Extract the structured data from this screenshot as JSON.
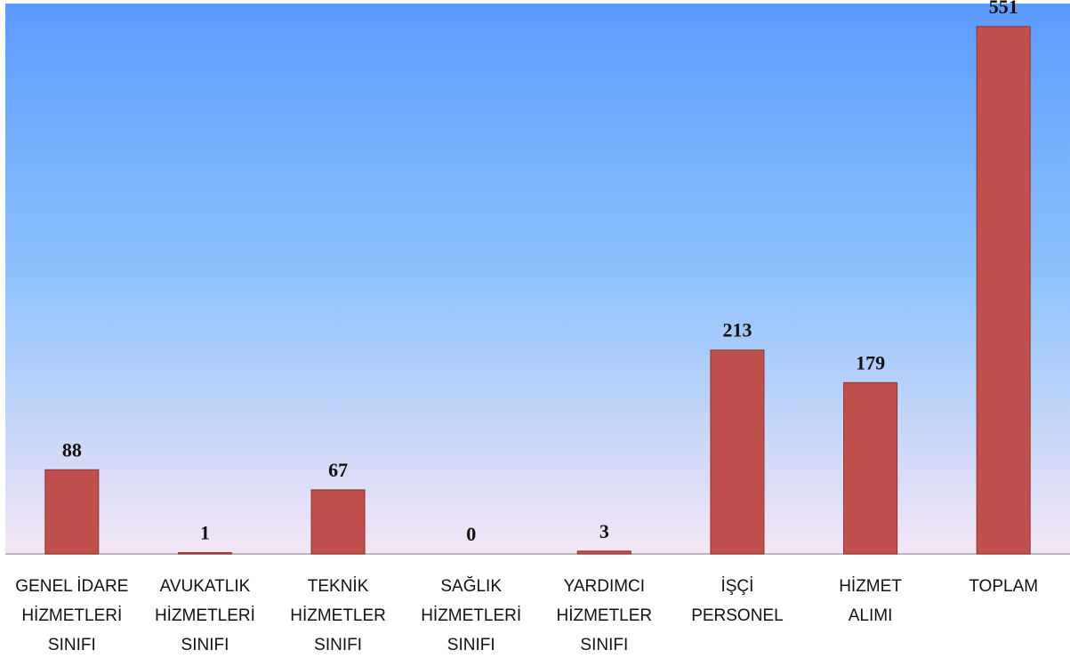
{
  "chart_data": {
    "type": "bar",
    "categories": [
      [
        "GENEL İDARE",
        "HİZMETLERİ",
        "SINIFI"
      ],
      [
        "AVUKATLIK",
        "HİZMETLERİ",
        "SINIFI"
      ],
      [
        "TEKNİK",
        "HİZMETLER",
        "SINIFI"
      ],
      [
        "SAĞLIK",
        "HİZMETLERİ",
        "SINIFI"
      ],
      [
        "YARDIMCI",
        "HİZMETLER",
        "SINIFI"
      ],
      [
        "İŞÇİ",
        "PERSONEL"
      ],
      [
        "HİZMET",
        "ALIMI"
      ],
      [
        "TOPLAM"
      ]
    ],
    "values": [
      88,
      1,
      67,
      0,
      3,
      213,
      179,
      551
    ],
    "data_labels": [
      "88",
      "1",
      "67",
      "0",
      "3",
      "213",
      "179",
      "551"
    ],
    "ylim": [
      0,
      575
    ],
    "grid": false,
    "colors": {
      "bar_fill": "#c0504d",
      "bar_stroke": "#8c3330",
      "background_top": "#5b9bff",
      "background_middle": "#8fc3fc",
      "background_bottom": "#f5e6f6",
      "axis_line": "#a6a6a6"
    }
  }
}
